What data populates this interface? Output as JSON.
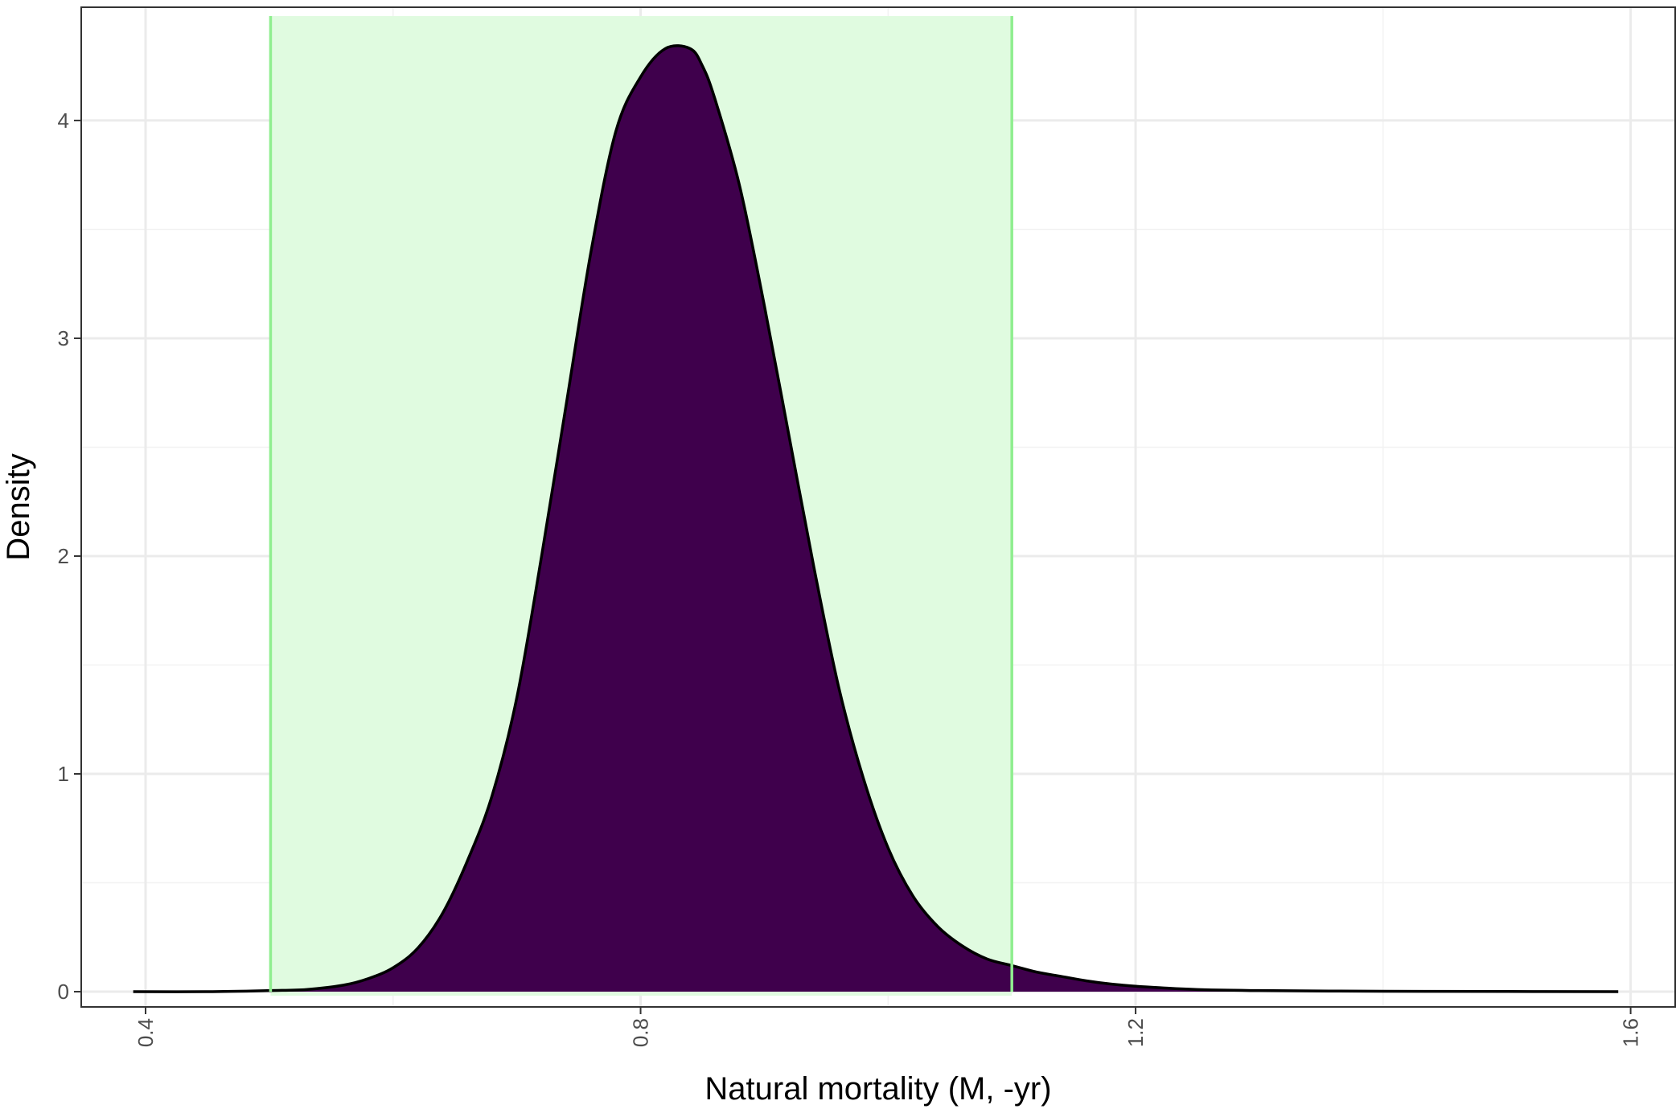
{
  "chart_data": {
    "type": "area",
    "title": "",
    "xlabel": "Natural mortality (M, -yr)",
    "ylabel": "Density",
    "xlim": [
      0.348,
      1.636
    ],
    "ylim": [
      -0.07,
      4.52
    ],
    "x_ticks": [
      0.4,
      0.8,
      1.2,
      1.6
    ],
    "x_tick_labels": [
      "0.4",
      "0.8",
      "1.2",
      "1.6"
    ],
    "x_minor_ticks": [
      0.6,
      1.0,
      1.4
    ],
    "y_ticks": [
      0,
      1,
      2,
      3,
      4
    ],
    "y_tick_labels": [
      "0",
      "1",
      "2",
      "3",
      "4"
    ],
    "y_minor_ticks": [
      0.5,
      1.5,
      2.5,
      3.5
    ],
    "grid": true,
    "legend": "none",
    "band": {
      "xmin": 0.501,
      "xmax": 1.1,
      "fill": "#e0fbe0",
      "line_color": "#90ee90"
    },
    "density": {
      "fill": "#3f004c",
      "stroke": "#000000",
      "x": [
        0.39,
        0.45,
        0.5,
        0.53,
        0.56,
        0.58,
        0.6,
        0.62,
        0.64,
        0.66,
        0.68,
        0.7,
        0.72,
        0.74,
        0.76,
        0.78,
        0.8,
        0.82,
        0.84,
        0.85,
        0.86,
        0.88,
        0.9,
        0.92,
        0.94,
        0.96,
        0.98,
        1.0,
        1.02,
        1.04,
        1.06,
        1.08,
        1.1,
        1.12,
        1.14,
        1.16,
        1.18,
        1.2,
        1.22,
        1.25,
        1.3,
        1.4,
        1.5,
        1.59
      ],
      "y": [
        0,
        0,
        0.005,
        0.01,
        0.03,
        0.06,
        0.11,
        0.2,
        0.36,
        0.6,
        0.9,
        1.35,
        2.0,
        2.7,
        3.4,
        3.95,
        4.2,
        4.33,
        4.33,
        4.25,
        4.1,
        3.7,
        3.15,
        2.55,
        1.95,
        1.4,
        0.98,
        0.66,
        0.44,
        0.3,
        0.21,
        0.15,
        0.12,
        0.09,
        0.07,
        0.05,
        0.035,
        0.025,
        0.018,
        0.01,
        0.005,
        0.002,
        0.001,
        0
      ]
    }
  }
}
